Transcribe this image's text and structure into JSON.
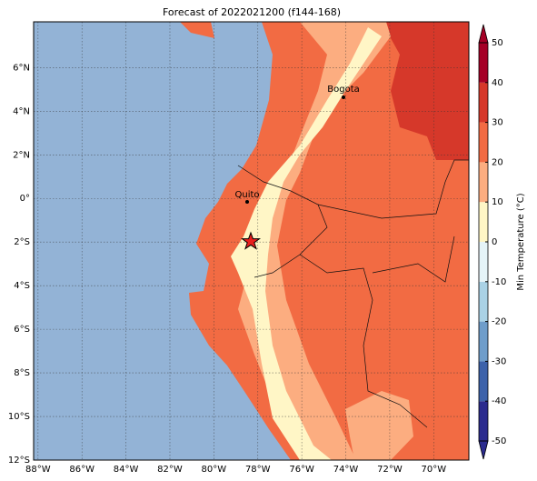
{
  "title": "Forecast of 2022021200 (f144-168)",
  "map": {
    "lonlim": [
      -88.2,
      -68.4
    ],
    "latlim": [
      -12,
      8.1
    ],
    "lon_ticks": [
      {
        "value": -88,
        "label": "88°W"
      },
      {
        "value": -86,
        "label": "86°W"
      },
      {
        "value": -84,
        "label": "84°W"
      },
      {
        "value": -82,
        "label": "82°W"
      },
      {
        "value": -80,
        "label": "80°W"
      },
      {
        "value": -78,
        "label": "78°W"
      },
      {
        "value": -76,
        "label": "76°W"
      },
      {
        "value": -74,
        "label": "74°W"
      },
      {
        "value": -72,
        "label": "72°W"
      },
      {
        "value": -70,
        "label": "70°W"
      }
    ],
    "lat_ticks": [
      {
        "value": 6,
        "label": "6°N"
      },
      {
        "value": 4,
        "label": "4°N"
      },
      {
        "value": 2,
        "label": "2°N"
      },
      {
        "value": 0,
        "label": "0°"
      },
      {
        "value": -2,
        "label": "2°S"
      },
      {
        "value": -4,
        "label": "4°S"
      },
      {
        "value": -6,
        "label": "6°S"
      },
      {
        "value": -8,
        "label": "8°S"
      },
      {
        "value": -10,
        "label": "10°S"
      },
      {
        "value": -12,
        "label": "12°S"
      }
    ],
    "cities": [
      "Bogota",
      "Quito"
    ]
  },
  "colorbar": {
    "label": "Min Temperature (°C)",
    "lim": [
      -50,
      50
    ],
    "ticks": [
      -50,
      -40,
      -30,
      -20,
      -10,
      0,
      10,
      20,
      30,
      40,
      50
    ],
    "colors": [
      "#2b2b8e",
      "#3d62aa",
      "#6f9dca",
      "#aad2e6",
      "#e6f4f8",
      "#fff6c6",
      "#fcad80",
      "#f26b43",
      "#d6382a",
      "#a50026"
    ]
  }
}
